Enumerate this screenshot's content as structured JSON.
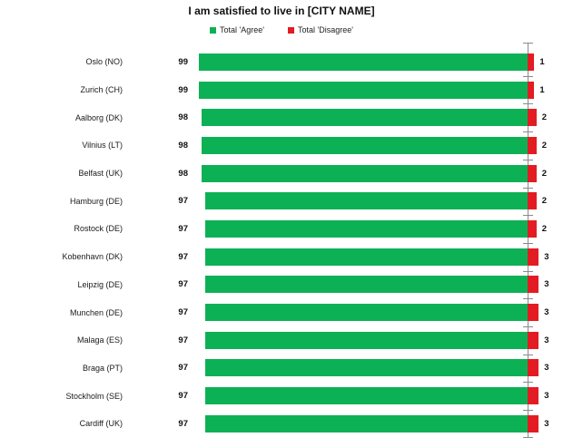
{
  "title": "I am satisfied to live in [CITY NAME]",
  "legend": [
    {
      "label": "Total 'Agree'",
      "color": "#0db155"
    },
    {
      "label": "Total 'Disagree'",
      "color": "#e31b23"
    }
  ],
  "chart_data": {
    "type": "bar",
    "orientation": "horizontal",
    "stacked": true,
    "title": "I am satisfied to live in [CITY NAME]",
    "xlabel": "",
    "ylabel": "",
    "xlim": [
      0,
      100
    ],
    "grid": false,
    "legend_position": "top-center",
    "value_labels": "agree left of bar, disagree right of bar",
    "categories": [
      "Oslo (NO)",
      "Zurich (CH)",
      "Aalborg (DK)",
      "Vilnius (LT)",
      "Belfast (UK)",
      "Hamburg (DE)",
      "Rostock (DE)",
      "Kobenhavn (DK)",
      "Leipzig (DE)",
      "Munchen (DE)",
      "Malaga (ES)",
      "Braga (PT)",
      "Stockholm (SE)",
      "Cardiff (UK)"
    ],
    "series": [
      {
        "name": "Total 'Agree'",
        "color": "#0db155",
        "values": [
          99,
          99,
          98,
          98,
          98,
          97,
          97,
          97,
          97,
          97,
          97,
          97,
          97,
          97
        ]
      },
      {
        "name": "Total 'Disagree'",
        "color": "#e31b23",
        "values": [
          1,
          1,
          2,
          2,
          2,
          2,
          2,
          3,
          3,
          3,
          3,
          3,
          3,
          3
        ]
      }
    ]
  }
}
